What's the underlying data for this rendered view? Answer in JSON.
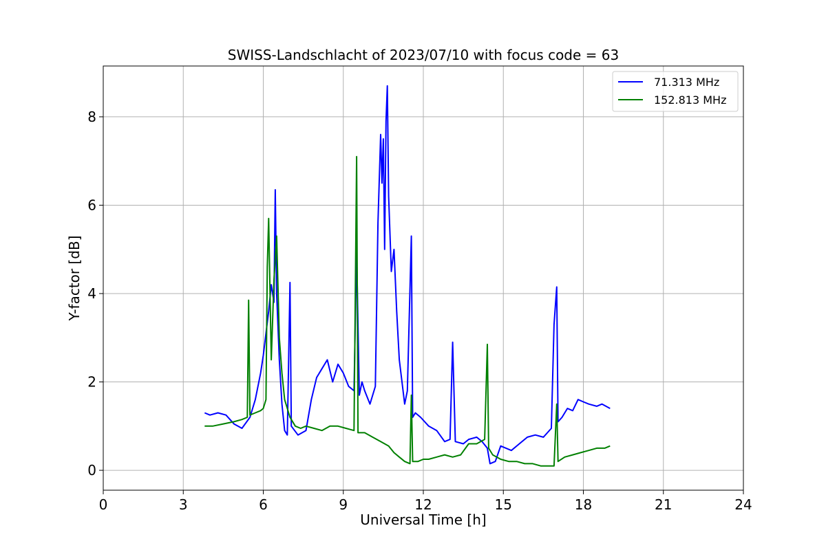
{
  "chart_data": {
    "type": "line",
    "title": "SWISS-Landschlacht of 2023/07/10 with focus code = 63",
    "xlabel": "Universal Time [h]",
    "ylabel": "Y-factor [dB]",
    "xlim": [
      0,
      24
    ],
    "ylim": [
      -0.45,
      9.15
    ],
    "xticks": [
      0,
      3,
      6,
      9,
      12,
      15,
      18,
      21,
      24
    ],
    "yticks": [
      0,
      2,
      4,
      6,
      8
    ],
    "grid": true,
    "legend_position": "top-right",
    "series": [
      {
        "name": "71.313 MHz",
        "legend_label": "  71.313 MHz",
        "color": "#0000ff",
        "points": [
          [
            3.8,
            1.3
          ],
          [
            4.0,
            1.25
          ],
          [
            4.3,
            1.3
          ],
          [
            4.6,
            1.25
          ],
          [
            4.9,
            1.05
          ],
          [
            5.2,
            0.95
          ],
          [
            5.5,
            1.2
          ],
          [
            5.7,
            1.6
          ],
          [
            5.9,
            2.2
          ],
          [
            6.0,
            2.6
          ],
          [
            6.1,
            3.1
          ],
          [
            6.2,
            3.6
          ],
          [
            6.3,
            4.2
          ],
          [
            6.4,
            3.8
          ],
          [
            6.45,
            6.35
          ],
          [
            6.5,
            4.0
          ],
          [
            6.6,
            2.5
          ],
          [
            6.7,
            1.5
          ],
          [
            6.8,
            0.9
          ],
          [
            6.9,
            0.8
          ],
          [
            7.0,
            4.25
          ],
          [
            7.05,
            1.0
          ],
          [
            7.3,
            0.8
          ],
          [
            7.6,
            0.9
          ],
          [
            7.8,
            1.6
          ],
          [
            8.0,
            2.1
          ],
          [
            8.2,
            2.3
          ],
          [
            8.4,
            2.5
          ],
          [
            8.6,
            2.0
          ],
          [
            8.8,
            2.4
          ],
          [
            9.0,
            2.2
          ],
          [
            9.2,
            1.9
          ],
          [
            9.4,
            1.8
          ],
          [
            9.5,
            4.95
          ],
          [
            9.6,
            1.7
          ],
          [
            9.7,
            2.0
          ],
          [
            9.8,
            1.8
          ],
          [
            10.0,
            1.5
          ],
          [
            10.2,
            1.9
          ],
          [
            10.3,
            5.6
          ],
          [
            10.4,
            7.6
          ],
          [
            10.45,
            6.5
          ],
          [
            10.5,
            7.5
          ],
          [
            10.55,
            5.0
          ],
          [
            10.6,
            7.9
          ],
          [
            10.65,
            8.7
          ],
          [
            10.7,
            6.2
          ],
          [
            10.8,
            4.5
          ],
          [
            10.9,
            5.0
          ],
          [
            11.0,
            3.6
          ],
          [
            11.1,
            2.5
          ],
          [
            11.2,
            2.0
          ],
          [
            11.3,
            1.5
          ],
          [
            11.4,
            1.8
          ],
          [
            11.55,
            5.3
          ],
          [
            11.6,
            1.2
          ],
          [
            11.7,
            1.3
          ],
          [
            11.9,
            1.2
          ],
          [
            12.2,
            1.0
          ],
          [
            12.5,
            0.9
          ],
          [
            12.8,
            0.65
          ],
          [
            13.0,
            0.7
          ],
          [
            13.1,
            2.9
          ],
          [
            13.2,
            0.65
          ],
          [
            13.5,
            0.6
          ],
          [
            13.7,
            0.7
          ],
          [
            14.0,
            0.75
          ],
          [
            14.2,
            0.65
          ],
          [
            14.4,
            0.5
          ],
          [
            14.5,
            0.15
          ],
          [
            14.7,
            0.2
          ],
          [
            14.9,
            0.55
          ],
          [
            15.1,
            0.5
          ],
          [
            15.3,
            0.45
          ],
          [
            15.6,
            0.6
          ],
          [
            15.9,
            0.75
          ],
          [
            16.2,
            0.8
          ],
          [
            16.5,
            0.75
          ],
          [
            16.8,
            0.95
          ],
          [
            16.9,
            3.3
          ],
          [
            17.0,
            4.15
          ],
          [
            17.05,
            1.1
          ],
          [
            17.2,
            1.2
          ],
          [
            17.4,
            1.4
          ],
          [
            17.6,
            1.35
          ],
          [
            17.8,
            1.6
          ],
          [
            18.0,
            1.55
          ],
          [
            18.2,
            1.5
          ],
          [
            18.5,
            1.45
          ],
          [
            18.7,
            1.5
          ],
          [
            19.0,
            1.4
          ]
        ]
      },
      {
        "name": "152.813 MHz",
        "legend_label": "152.813 MHz",
        "color": "#008000",
        "points": [
          [
            3.8,
            1.0
          ],
          [
            4.1,
            1.0
          ],
          [
            4.5,
            1.05
          ],
          [
            4.9,
            1.1
          ],
          [
            5.2,
            1.15
          ],
          [
            5.4,
            1.2
          ],
          [
            5.45,
            3.85
          ],
          [
            5.5,
            1.25
          ],
          [
            5.7,
            1.3
          ],
          [
            5.9,
            1.35
          ],
          [
            6.0,
            1.4
          ],
          [
            6.1,
            1.6
          ],
          [
            6.15,
            4.6
          ],
          [
            6.2,
            5.7
          ],
          [
            6.3,
            2.5
          ],
          [
            6.4,
            4.3
          ],
          [
            6.5,
            5.3
          ],
          [
            6.6,
            3.0
          ],
          [
            6.7,
            2.2
          ],
          [
            6.8,
            1.6
          ],
          [
            7.0,
            1.2
          ],
          [
            7.2,
            1.0
          ],
          [
            7.4,
            0.95
          ],
          [
            7.6,
            1.0
          ],
          [
            7.9,
            0.95
          ],
          [
            8.2,
            0.9
          ],
          [
            8.5,
            1.0
          ],
          [
            8.8,
            1.0
          ],
          [
            9.1,
            0.95
          ],
          [
            9.4,
            0.9
          ],
          [
            9.5,
            7.1
          ],
          [
            9.55,
            0.85
          ],
          [
            9.8,
            0.85
          ],
          [
            10.1,
            0.75
          ],
          [
            10.4,
            0.65
          ],
          [
            10.7,
            0.55
          ],
          [
            10.9,
            0.4
          ],
          [
            11.1,
            0.3
          ],
          [
            11.3,
            0.2
          ],
          [
            11.5,
            0.15
          ],
          [
            11.55,
            1.7
          ],
          [
            11.6,
            0.2
          ],
          [
            11.8,
            0.2
          ],
          [
            12.0,
            0.25
          ],
          [
            12.2,
            0.25
          ],
          [
            12.5,
            0.3
          ],
          [
            12.8,
            0.35
          ],
          [
            13.1,
            0.3
          ],
          [
            13.4,
            0.35
          ],
          [
            13.7,
            0.6
          ],
          [
            14.0,
            0.6
          ],
          [
            14.3,
            0.7
          ],
          [
            14.4,
            2.85
          ],
          [
            14.45,
            0.5
          ],
          [
            14.6,
            0.35
          ],
          [
            14.9,
            0.25
          ],
          [
            15.2,
            0.2
          ],
          [
            15.5,
            0.2
          ],
          [
            15.8,
            0.15
          ],
          [
            16.1,
            0.15
          ],
          [
            16.4,
            0.1
          ],
          [
            16.7,
            0.1
          ],
          [
            16.9,
            0.1
          ],
          [
            17.0,
            1.5
          ],
          [
            17.05,
            0.2
          ],
          [
            17.3,
            0.3
          ],
          [
            17.6,
            0.35
          ],
          [
            17.9,
            0.4
          ],
          [
            18.2,
            0.45
          ],
          [
            18.5,
            0.5
          ],
          [
            18.8,
            0.5
          ],
          [
            19.0,
            0.55
          ]
        ]
      }
    ]
  }
}
